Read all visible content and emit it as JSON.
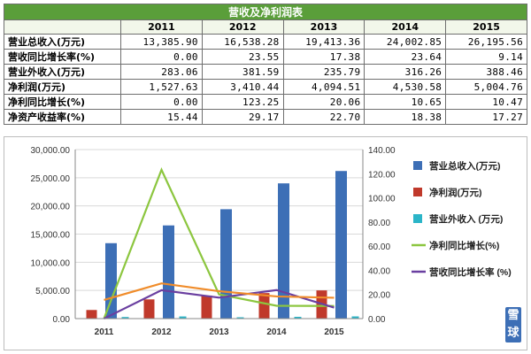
{
  "table": {
    "title": "营收及净利润表",
    "years": [
      "2011",
      "2012",
      "2013",
      "2014",
      "2015"
    ],
    "rows": [
      {
        "label": "营业总收入(万元)",
        "values": [
          "13,385.90",
          "16,538.28",
          "19,413.36",
          "24,002.85",
          "26,195.56"
        ]
      },
      {
        "label": "营收同比增长率(%)",
        "values": [
          "0.00",
          "23.55",
          "17.38",
          "23.64",
          "9.14"
        ]
      },
      {
        "label": "营业外收入(万元)",
        "values": [
          "283.06",
          "381.59",
          "235.79",
          "316.26",
          "388.46"
        ]
      },
      {
        "label": "净利润(万元)",
        "values": [
          "1,527.63",
          "3,410.44",
          "4,094.51",
          "4,530.58",
          "5,004.76"
        ]
      },
      {
        "label": "净利同比增长(%)",
        "values": [
          "0.00",
          "123.25",
          "20.06",
          "10.65",
          "10.47"
        ]
      },
      {
        "label": "净资产收益率(%)",
        "values": [
          "15.44",
          "29.17",
          "22.70",
          "18.38",
          "17.27"
        ]
      }
    ]
  },
  "chart_data": {
    "type": "bar",
    "categories": [
      "2011",
      "2012",
      "2013",
      "2014",
      "2015"
    ],
    "left_axis": {
      "ticks": [
        "0.00",
        "5,000.00",
        "10,000.00",
        "15,000.00",
        "20,000.00",
        "25,000.00",
        "30,000.00"
      ],
      "ylim": [
        0,
        30000
      ]
    },
    "right_axis": {
      "ticks": [
        "0.00",
        "20.00",
        "40.00",
        "60.00",
        "80.00",
        "100.00",
        "120.00",
        "140.00"
      ],
      "ylim": [
        0,
        140
      ]
    },
    "grid": true,
    "legend_position": "right",
    "series": [
      {
        "name": "营业总收入(万元)",
        "kind": "bar",
        "axis": "left",
        "color": "#3d6fb6",
        "values": [
          13385.9,
          16538.28,
          19413.36,
          24002.85,
          26195.56
        ]
      },
      {
        "name": "净利润(万元)",
        "kind": "bar",
        "axis": "left",
        "color": "#c0392b",
        "values": [
          1527.63,
          3410.44,
          4094.51,
          4530.58,
          5004.76
        ]
      },
      {
        "name": "营业外收入 (万元)",
        "kind": "bar",
        "axis": "left",
        "color": "#2bb5c8",
        "values": [
          283.06,
          381.59,
          235.79,
          316.26,
          388.46
        ]
      },
      {
        "name": "净利同比增长(%)",
        "kind": "line",
        "axis": "right",
        "color": "#8cc63f",
        "values": [
          0.0,
          123.25,
          20.06,
          10.65,
          10.47
        ]
      },
      {
        "name": "营收同比增长率 (%)",
        "kind": "line",
        "axis": "right",
        "color": "#6a3fa0",
        "values": [
          0.0,
          23.55,
          17.38,
          23.64,
          9.14
        ]
      },
      {
        "name": "",
        "kind": "line",
        "axis": "right",
        "color": "#f08c2a",
        "values": [
          15.44,
          29.17,
          22.7,
          18.38,
          17.27
        ]
      }
    ]
  },
  "watermark": "雪球"
}
